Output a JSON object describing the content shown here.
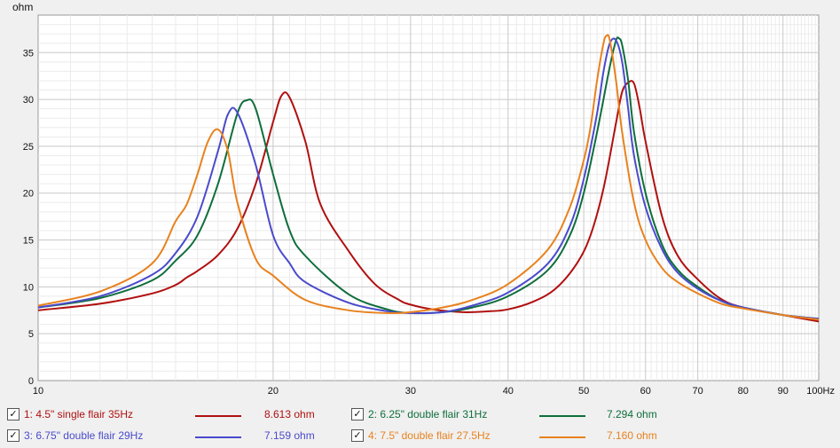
{
  "chart_data": {
    "type": "line",
    "yunit": "ohm",
    "xlim": [
      10,
      100
    ],
    "ylim": [
      0,
      39
    ],
    "xscale": "log",
    "grid": true,
    "x_ticks": [
      {
        "v": 10,
        "label": "10"
      },
      {
        "v": 20,
        "label": "20"
      },
      {
        "v": 30,
        "label": "30"
      },
      {
        "v": 40,
        "label": "40"
      },
      {
        "v": 50,
        "label": "50"
      },
      {
        "v": 60,
        "label": "60"
      },
      {
        "v": 70,
        "label": "70"
      },
      {
        "v": 80,
        "label": "80"
      },
      {
        "v": 90,
        "label": "90"
      },
      {
        "v": 100,
        "label": "100Hz"
      }
    ],
    "y_ticks": [
      0,
      5,
      10,
      15,
      20,
      25,
      30,
      35
    ],
    "series": [
      {
        "name": "1: 4.5\" single flair 35Hz",
        "color": "#b01010",
        "legend_value": "8.613 ohm",
        "x": [
          10,
          12,
          14,
          15,
          15.5,
          16,
          17,
          18,
          19,
          20,
          20.5,
          21,
          22,
          23,
          25,
          27,
          29,
          30,
          32,
          35,
          38,
          40,
          43,
          46,
          49,
          51,
          53,
          55,
          56,
          57,
          58,
          59,
          60,
          63,
          66,
          70,
          75,
          80,
          90,
          100
        ],
        "y": [
          7.5,
          8.2,
          9.3,
          10.2,
          11.0,
          11.7,
          13.4,
          16.2,
          21.0,
          27.6,
          30.4,
          30.2,
          25.5,
          18.8,
          13.8,
          10.3,
          8.6,
          8.1,
          7.6,
          7.3,
          7.4,
          7.6,
          8.4,
          9.8,
          12.5,
          15.5,
          20.5,
          27.5,
          30.8,
          31.8,
          31.7,
          29.0,
          25.5,
          17.5,
          13.3,
          10.8,
          8.7,
          7.8,
          7.0,
          6.3
        ]
      },
      {
        "name": "2: 6.25\" double flair 31Hz",
        "color": "#0e6e3c",
        "legend_value": "7.294 ohm",
        "x": [
          10,
          12,
          14,
          15,
          16,
          17,
          18,
          18.5,
          19,
          20,
          21,
          22,
          25,
          28,
          30,
          33,
          36,
          40,
          45,
          48,
          50,
          52,
          54,
          55,
          55.5,
          56,
          57,
          58,
          60,
          63,
          66,
          70,
          75,
          80,
          90,
          100
        ],
        "y": [
          7.8,
          8.8,
          10.7,
          12.8,
          15.5,
          21.0,
          28.5,
          29.9,
          29.0,
          22.0,
          16.0,
          13.3,
          9.2,
          7.6,
          7.2,
          7.3,
          7.8,
          9.0,
          11.8,
          15.5,
          20.0,
          26.5,
          33.5,
          36.3,
          36.5,
          35.8,
          32.0,
          26.5,
          20.0,
          14.5,
          11.8,
          10.0,
          8.5,
          7.8,
          7.0,
          6.6
        ]
      },
      {
        "name": "3: 6.75\" double flair 29Hz",
        "color": "#4a4acc",
        "legend_value": "7.159 ohm",
        "x": [
          10,
          12,
          14,
          15,
          16,
          17,
          17.5,
          18,
          19,
          20,
          21,
          22,
          25,
          28,
          30,
          33,
          36,
          40,
          45,
          48,
          50,
          52,
          53,
          54,
          55,
          56,
          57,
          58,
          60,
          63,
          66,
          70,
          75,
          80,
          90,
          100
        ],
        "y": [
          7.8,
          9.0,
          11.3,
          13.6,
          17.5,
          24.5,
          28.4,
          28.6,
          23.0,
          15.5,
          12.5,
          10.5,
          8.3,
          7.4,
          7.2,
          7.3,
          8.0,
          9.4,
          12.5,
          16.5,
          21.5,
          28.5,
          33.0,
          36.0,
          36.3,
          34.0,
          29.0,
          24.0,
          18.5,
          14.0,
          11.5,
          9.8,
          8.5,
          7.8,
          7.0,
          6.6
        ]
      },
      {
        "name": "4: 7.5\" double flair 27.5Hz",
        "color": "#e8821e",
        "legend_value": "7.160 ohm",
        "x": [
          10,
          12,
          14,
          15,
          15.5,
          16,
          16.5,
          17,
          17.5,
          18,
          19,
          20,
          22,
          25,
          28,
          30,
          33,
          36,
          40,
          45,
          48,
          50,
          51,
          52,
          53,
          53.5,
          54,
          55,
          56,
          58,
          60,
          63,
          66,
          70,
          75,
          80,
          90,
          100
        ],
        "y": [
          8.0,
          9.5,
          12.5,
          17.0,
          18.8,
          22.0,
          25.5,
          26.8,
          24.5,
          19.0,
          13.0,
          11.2,
          8.6,
          7.5,
          7.2,
          7.3,
          7.8,
          8.6,
          10.3,
          14.0,
          18.5,
          23.5,
          27.0,
          32.0,
          36.0,
          36.8,
          36.3,
          32.0,
          26.5,
          19.0,
          15.0,
          12.0,
          10.5,
          9.3,
          8.2,
          7.7,
          7.0,
          6.5
        ]
      }
    ]
  },
  "legend_check_mark": "✓"
}
